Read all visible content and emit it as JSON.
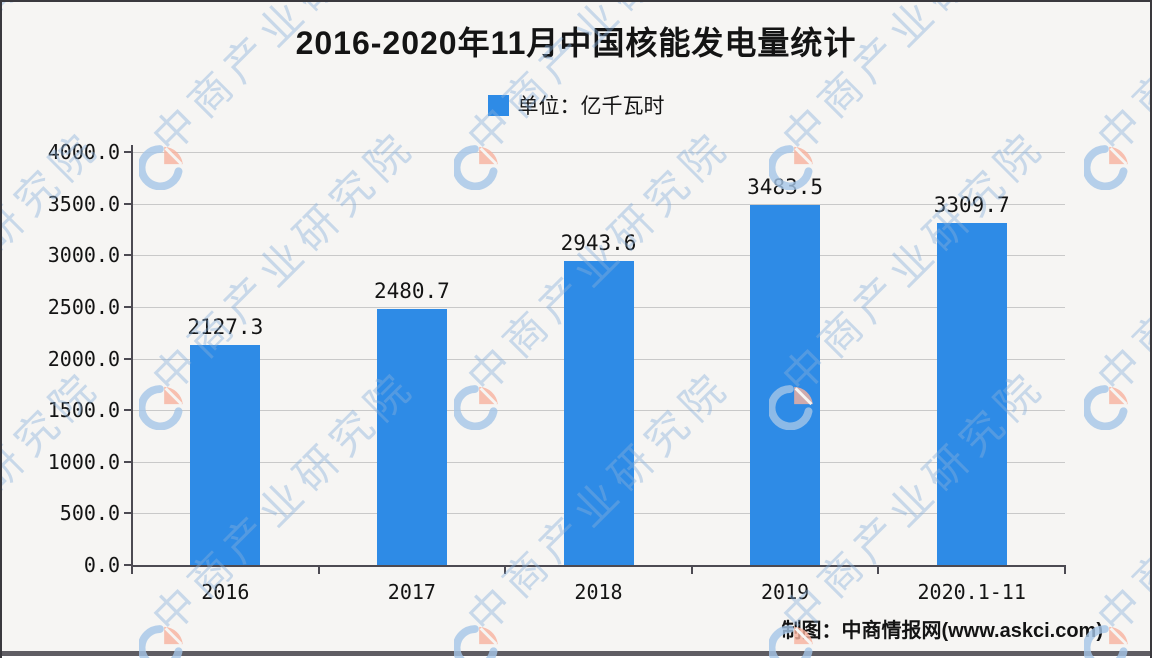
{
  "chart": {
    "title": "2016-2020年11月中国核能发电量统计",
    "legend_label": "单位：亿千瓦时",
    "attribution": "制图：中商情报网(www.askci.com)"
  },
  "chart_data": {
    "type": "bar",
    "title": "2016-2020年11月中国核能发电量统计",
    "unit_legend": "单位：亿千瓦时",
    "categories": [
      "2016",
      "2017",
      "2018",
      "2019",
      "2020.1-11"
    ],
    "values": [
      2127.3,
      2480.7,
      2943.6,
      3483.5,
      3309.7
    ],
    "value_labels": [
      "2127.3",
      "2480.7",
      "2943.6",
      "3483.5",
      "3309.7"
    ],
    "xlabel": "",
    "ylabel": "",
    "ylim": [
      0,
      4000
    ],
    "ytick_step": 500,
    "ytick_labels": [
      "0.0",
      "500.0",
      "1000.0",
      "1500.0",
      "2000.0",
      "2500.0",
      "3000.0",
      "3500.0",
      "4000.0"
    ],
    "grid": true,
    "legend_position": "top-center",
    "bar_color": "#2e8be6"
  },
  "watermark": {
    "text": "中商产业研究院",
    "logo": "askci-pie-logo",
    "text_color": "rgba(137,176,219,0.42)",
    "logo_blue": "#a5c6e7",
    "logo_salmon": "#f7b19e"
  },
  "colors": {
    "background": "#f6f5f3",
    "bar": "#2e8be6",
    "grid_line": "#c9c9c9",
    "axis_line": "#4c4a52",
    "text": "#141414",
    "bottom_bar": "#5f5d63"
  }
}
